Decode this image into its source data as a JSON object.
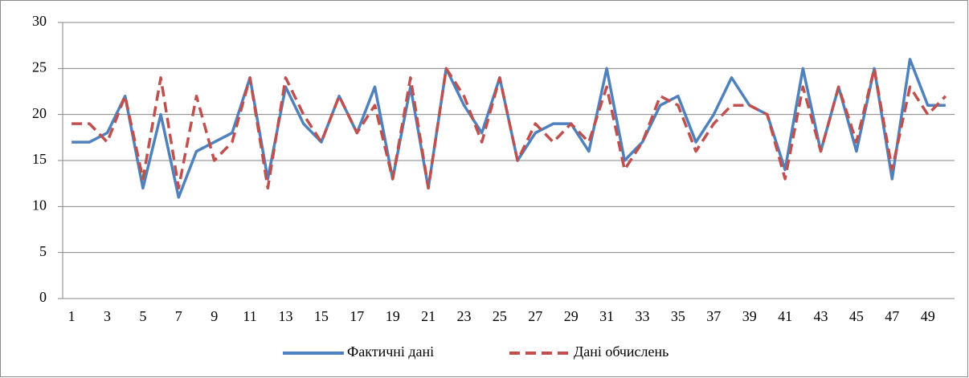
{
  "chart_data": {
    "type": "line",
    "categories": [
      "1",
      null,
      "3",
      null,
      "5",
      null,
      "7",
      null,
      "9",
      null,
      "11",
      null,
      "13",
      null,
      "15",
      null,
      "17",
      null,
      "19",
      null,
      "21",
      null,
      "23",
      null,
      "25",
      null,
      "27",
      null,
      "29",
      null,
      "31",
      null,
      "33",
      null,
      "35",
      null,
      "37",
      null,
      "39",
      null,
      "41",
      null,
      "43",
      null,
      "45",
      null,
      "47",
      null,
      "49",
      null
    ],
    "series": [
      {
        "name": "Фактичні дані",
        "color": "#4f81bd",
        "dashed": false,
        "values": [
          17,
          17,
          18,
          22,
          12,
          20,
          11,
          16,
          17,
          18,
          24,
          13,
          23,
          19,
          17,
          22,
          18,
          23,
          13,
          23,
          12,
          25,
          21,
          18,
          24,
          15,
          18,
          19,
          19,
          16,
          25,
          15,
          17,
          21,
          22,
          17,
          20,
          24,
          21,
          20,
          14,
          25,
          16,
          23,
          16,
          25,
          13,
          26,
          21,
          21
        ]
      },
      {
        "name": "Дані обчислень",
        "color": "#c0504d",
        "dashed": true,
        "values": [
          19,
          19,
          17,
          22,
          13,
          24,
          12,
          22,
          15,
          17,
          24,
          12,
          24,
          20,
          17,
          22,
          18,
          21,
          13,
          24,
          12,
          25,
          22,
          17,
          24,
          15,
          19,
          17,
          19,
          17,
          23,
          14,
          17,
          22,
          21,
          16,
          19,
          21,
          21,
          20,
          13,
          23,
          16,
          23,
          17,
          25,
          14,
          23,
          20,
          22
        ]
      }
    ],
    "ylim": [
      0,
      30
    ],
    "yticks": [
      0,
      5,
      10,
      15,
      20,
      25,
      30
    ],
    "grid": true,
    "legend": "bottom"
  }
}
